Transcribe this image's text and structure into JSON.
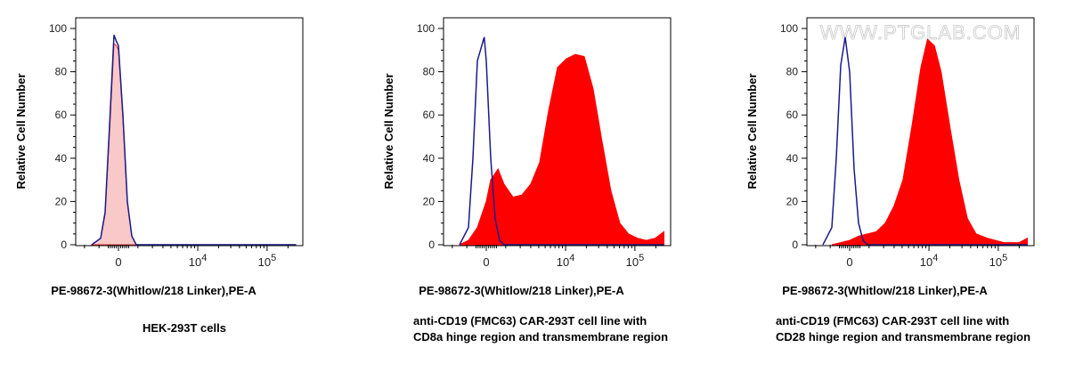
{
  "chart_data": [
    {
      "type": "area",
      "xlabel": "PE-98672-3(Whitlow/218 Linker),PE-A",
      "ylabel": "Relative Cell Number",
      "caption": "HEK-293T cells",
      "xscale": "biexponential",
      "xlim": [
        -2800,
        262144
      ],
      "ylim": [
        0,
        105
      ],
      "yticks": [
        "0",
        "20",
        "40",
        "60",
        "80",
        "100"
      ],
      "xticks": [
        {
          "value": 0,
          "label": "0"
        },
        {
          "value": 10000,
          "base": "10",
          "exp": "4"
        },
        {
          "value": 100000,
          "base": "10",
          "exp": "5"
        }
      ],
      "grid": false,
      "series": [
        {
          "role": "sample",
          "fill": "#f9c8c8",
          "stroke": "#e03030",
          "points": [
            [
              -1457,
              0
            ],
            [
              -906,
              3
            ],
            [
              -663,
              14
            ],
            [
              -434,
              52
            ],
            [
              -215,
              93
            ],
            [
              -100,
              92
            ],
            [
              0,
              90
            ],
            [
              215,
              58
            ],
            [
              434,
              19
            ],
            [
              663,
              4
            ],
            [
              906,
              0
            ],
            [
              262144,
              0
            ]
          ]
        },
        {
          "role": "control",
          "stroke": "#1a1a8c",
          "points": [
            [
              -1457,
              0
            ],
            [
              -906,
              3
            ],
            [
              -663,
              15
            ],
            [
              -434,
              55
            ],
            [
              -215,
              97
            ],
            [
              -100,
              94
            ],
            [
              0,
              92
            ],
            [
              215,
              60
            ],
            [
              434,
              20
            ],
            [
              663,
              4
            ],
            [
              906,
              0
            ],
            [
              262144,
              0
            ]
          ]
        }
      ]
    },
    {
      "type": "area",
      "xlabel": "PE-98672-3(Whitlow/218 Linker),PE-A",
      "ylabel": "Relative Cell Number",
      "caption": "anti-CD19 (FMC63) CAR-293T cell line with\nCD8a hinge region and transmembrane region",
      "xscale": "biexponential",
      "xlim": [
        -2800,
        262144
      ],
      "ylim": [
        0,
        105
      ],
      "yticks": [
        "0",
        "20",
        "40",
        "60",
        "80",
        "100"
      ],
      "xticks": [
        {
          "value": 0,
          "label": "0"
        },
        {
          "value": 10000,
          "base": "10",
          "exp": "4"
        },
        {
          "value": 100000,
          "base": "10",
          "exp": "5"
        }
      ],
      "grid": false,
      "series": [
        {
          "role": "sample",
          "fill": "#ff0000",
          "stroke": "#ff0000",
          "points": [
            [
              -1457,
              0
            ],
            [
              -906,
              2
            ],
            [
              -434,
              8
            ],
            [
              0,
              20
            ],
            [
              215,
              30
            ],
            [
              580,
              35
            ],
            [
              906,
              28
            ],
            [
              1457,
              22
            ],
            [
              2137,
              23
            ],
            [
              3000,
              28
            ],
            [
              4130,
              38
            ],
            [
              5630,
              62
            ],
            [
              7630,
              82
            ],
            [
              10280,
              86
            ],
            [
              13850,
              88
            ],
            [
              18600,
              87
            ],
            [
              25000,
              72
            ],
            [
              33500,
              48
            ],
            [
              45000,
              25
            ],
            [
              60500,
              10
            ],
            [
              81000,
              5
            ],
            [
              109000,
              3
            ],
            [
              146000,
              2
            ],
            [
              196000,
              3
            ],
            [
              262144,
              6
            ]
          ]
        },
        {
          "role": "control",
          "stroke": "#1a1a8c",
          "points": [
            [
              -1457,
              0
            ],
            [
              -906,
              8
            ],
            [
              -663,
              40
            ],
            [
              -434,
              85
            ],
            [
              -100,
              96
            ],
            [
              0,
              85
            ],
            [
              215,
              40
            ],
            [
              434,
              12
            ],
            [
              663,
              2
            ],
            [
              906,
              0
            ],
            [
              262144,
              0
            ]
          ]
        }
      ]
    },
    {
      "type": "area",
      "xlabel": "PE-98672-3(Whitlow/218 Linker),PE-A",
      "ylabel": "Relative Cell Number",
      "caption": "anti-CD19 (FMC63) CAR-293T cell line with\nCD28 hinge region and transmembrane region",
      "watermark": "WWW.PTGLAB.COM",
      "xscale": "biexponential",
      "xlim": [
        -2800,
        262144
      ],
      "ylim": [
        0,
        105
      ],
      "yticks": [
        "0",
        "20",
        "40",
        "60",
        "80",
        "100"
      ],
      "xticks": [
        {
          "value": 0,
          "label": "0"
        },
        {
          "value": 10000,
          "base": "10",
          "exp": "4"
        },
        {
          "value": 100000,
          "base": "10",
          "exp": "5"
        }
      ],
      "grid": false,
      "series": [
        {
          "role": "sample",
          "fill": "#ff0000",
          "stroke": "#ff0000",
          "points": [
            [
              -906,
              0
            ],
            [
              -434,
              1
            ],
            [
              0,
              2
            ],
            [
              434,
              4
            ],
            [
              906,
              5
            ],
            [
              1457,
              6
            ],
            [
              2137,
              10
            ],
            [
              3000,
              18
            ],
            [
              4130,
              30
            ],
            [
              5630,
              55
            ],
            [
              7630,
              82
            ],
            [
              9500,
              95
            ],
            [
              12000,
              92
            ],
            [
              15000,
              80
            ],
            [
              20000,
              55
            ],
            [
              27000,
              30
            ],
            [
              36000,
              12
            ],
            [
              48000,
              5
            ],
            [
              70000,
              3
            ],
            [
              120000,
              1
            ],
            [
              200000,
              1
            ],
            [
              262144,
              3
            ]
          ]
        },
        {
          "role": "control",
          "stroke": "#1a1a8c",
          "points": [
            [
              -1457,
              0
            ],
            [
              -906,
              8
            ],
            [
              -663,
              40
            ],
            [
              -434,
              83
            ],
            [
              -215,
              96
            ],
            [
              0,
              80
            ],
            [
              215,
              35
            ],
            [
              434,
              10
            ],
            [
              663,
              2
            ],
            [
              906,
              0
            ],
            [
              262144,
              0
            ]
          ]
        }
      ]
    }
  ]
}
